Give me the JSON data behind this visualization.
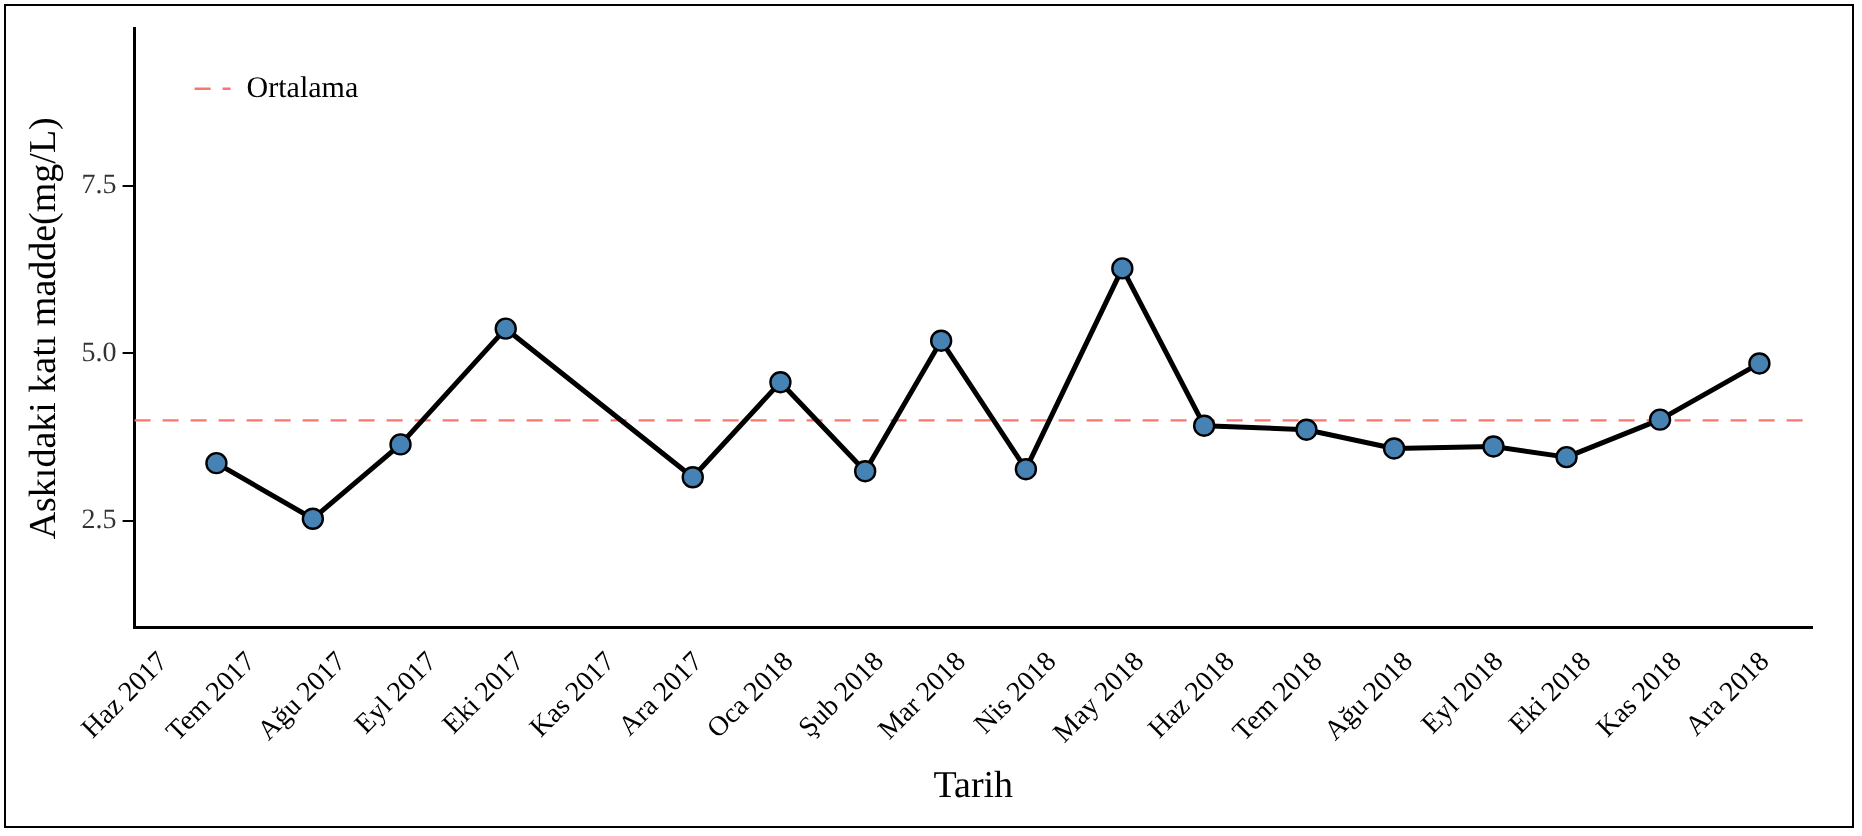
{
  "chart_data": {
    "type": "line",
    "xlabel": "Tarih",
    "ylabel": "Askıdaki katı madde(mg/L)",
    "x": [
      "2017-06-19",
      "2017-07-22",
      "2017-08-21",
      "2017-09-26",
      "2017-11-29",
      "2017-12-29",
      "2018-01-27",
      "2018-02-22",
      "2018-03-23",
      "2018-04-25",
      "2018-05-23",
      "2018-06-27",
      "2018-07-27",
      "2018-08-30",
      "2018-09-24",
      "2018-10-26",
      "2018-11-29"
    ],
    "series": [
      {
        "color": "#000000",
        "values": [
          3.36,
          2.53,
          3.64,
          5.37,
          3.15,
          4.57,
          3.24,
          5.19,
          3.27,
          6.27,
          3.92,
          3.86,
          3.58,
          3.61,
          3.45,
          4.01,
          4.85
        ]
      }
    ],
    "marker": "circle",
    "grid": false,
    "legend": "top left",
    "ylim": [
      0.9,
      9.85
    ],
    "yticks": [
      2.5,
      {
        "value": 5,
        "label": "5.0"
      },
      7.5
    ],
    "xlim": [
      "2017-05-22",
      "2018-12-17"
    ],
    "xticks": [
      {
        "value": "2017-06-01",
        "label": "Haz 2017"
      },
      {
        "value": "2017-07-01",
        "label": "Tem 2017"
      },
      {
        "value": "2017-08-01",
        "label": "Ağu 2017"
      },
      {
        "value": "2017-09-01",
        "label": "Eyl 2017"
      },
      {
        "value": "2017-10-01",
        "label": "Eki 2017"
      },
      {
        "value": "2017-11-01",
        "label": "Kas 2017"
      },
      {
        "value": "2017-12-01",
        "label": "Ara 2017"
      },
      {
        "value": "2018-01-01",
        "label": "Oca 2018"
      },
      {
        "value": "2018-02-01",
        "label": "Şub 2018"
      },
      {
        "value": "2018-03-01",
        "label": "Mar 2018"
      },
      {
        "value": "2018-04-01",
        "label": "Nis 2018"
      },
      {
        "value": "2018-05-01",
        "label": "May 2018"
      },
      {
        "value": "2018-06-01",
        "label": "Haz 2018"
      },
      {
        "value": "2018-07-01",
        "label": "Tem 2018"
      },
      {
        "value": "2018-08-01",
        "label": "Ağu 2018"
      },
      {
        "value": "2018-09-01",
        "label": "Eyl 2018"
      },
      {
        "value": "2018-10-01",
        "label": "Eki 2018"
      },
      {
        "value": "2018-11-01",
        "label": "Kas 2018"
      },
      {
        "value": "2018-12-01",
        "label": "Ara 2018"
      }
    ],
    "ref_lines": [
      {
        "axis": "y",
        "value": 4.0,
        "label": "Ortalama",
        "color": "#f8766d",
        "line_style": "dashed"
      }
    ]
  }
}
